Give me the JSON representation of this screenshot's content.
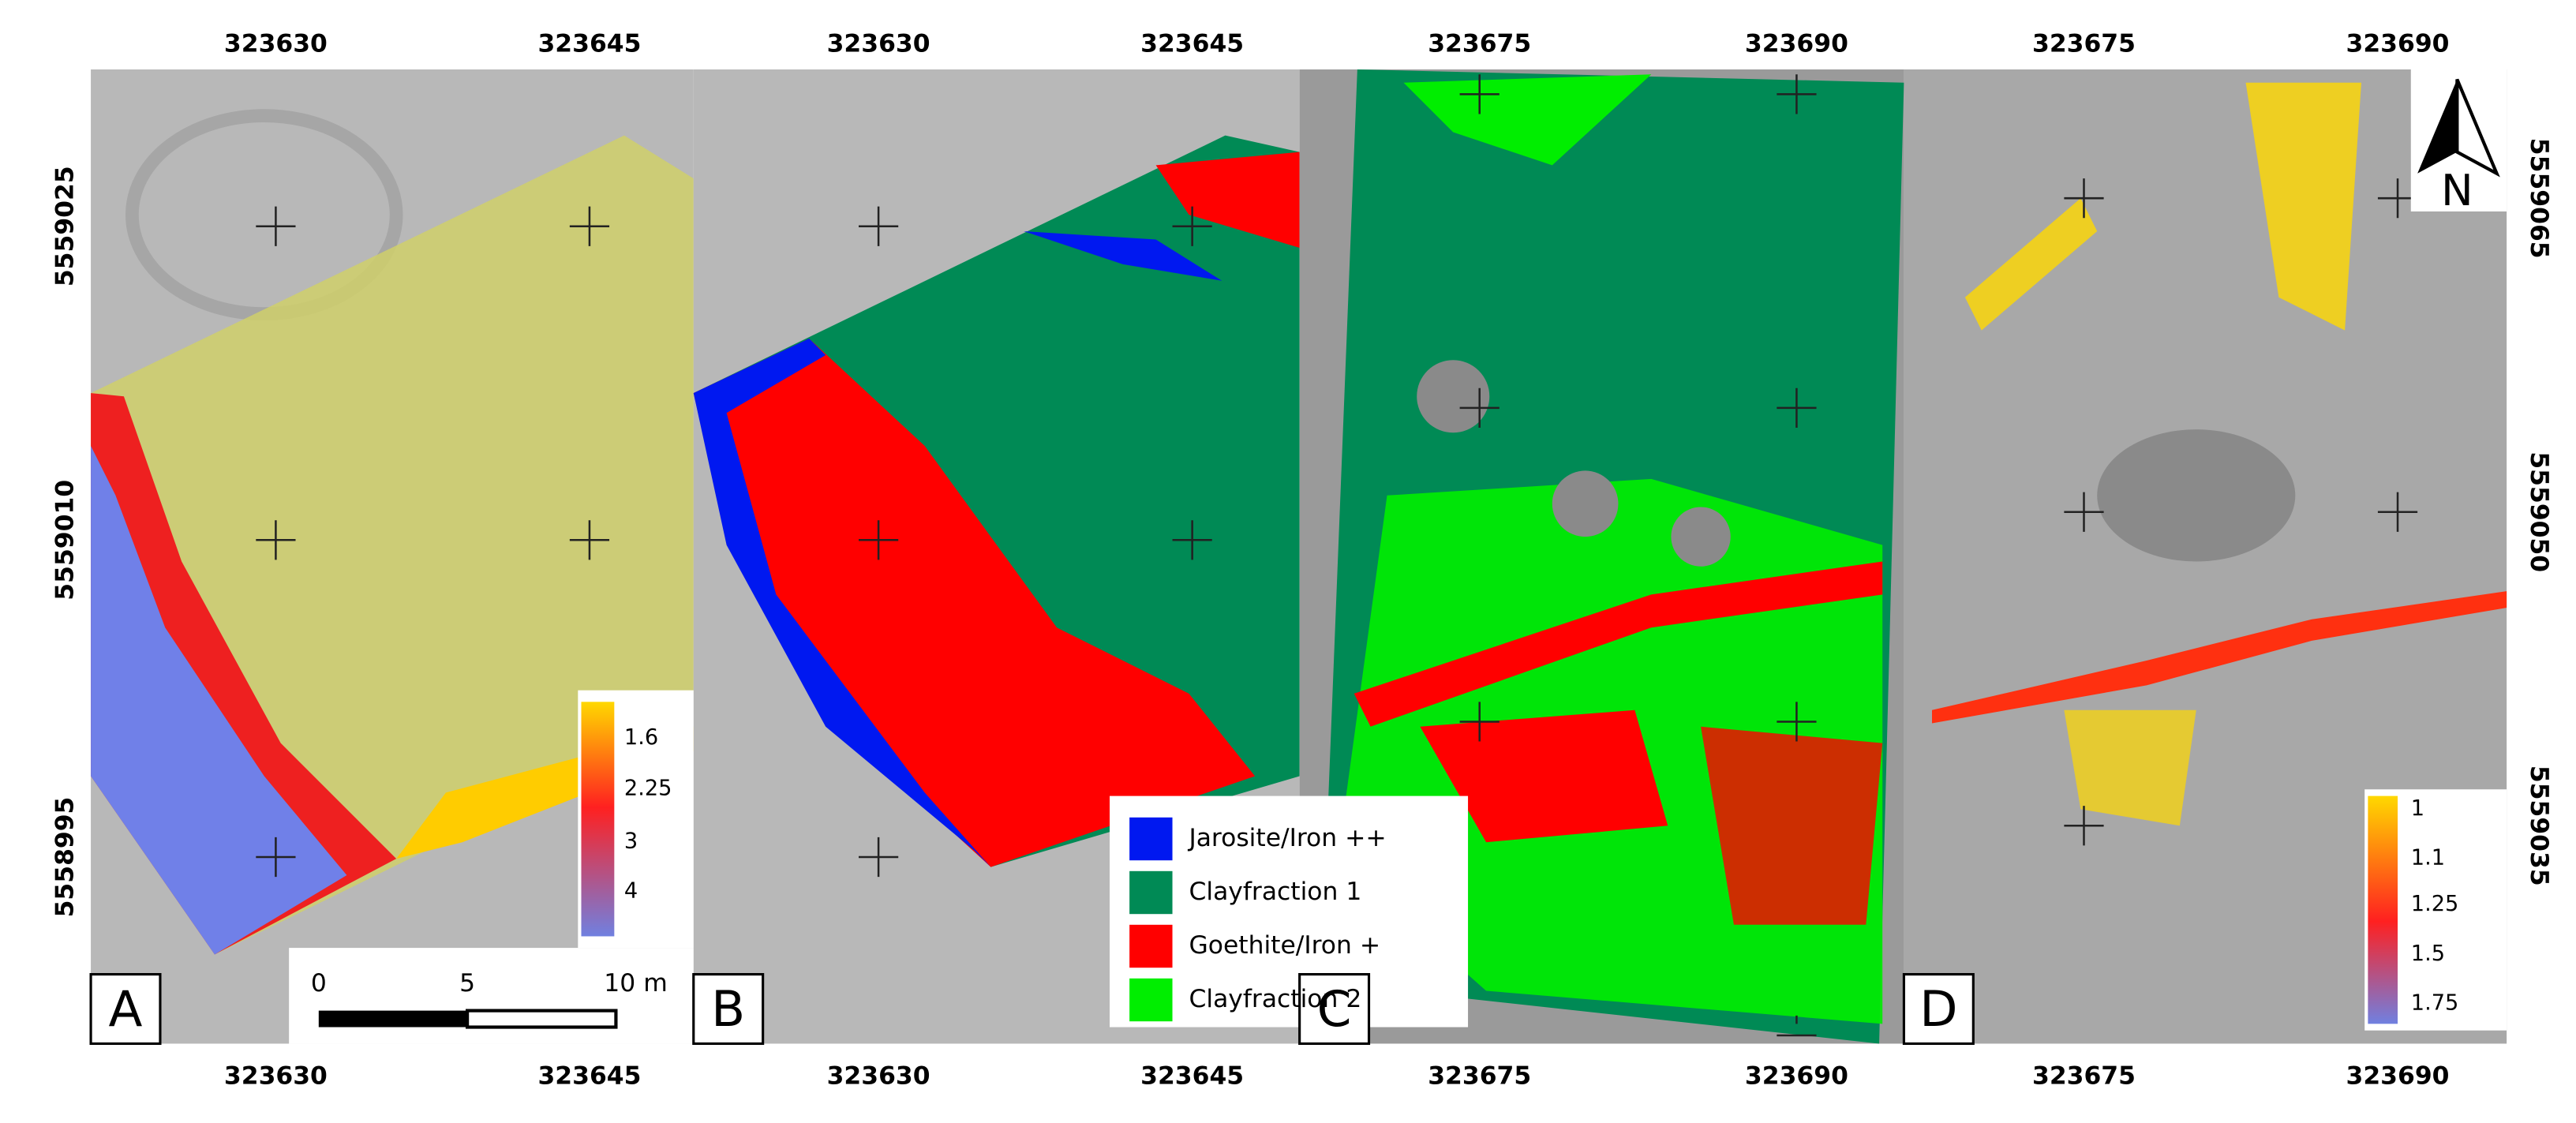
{
  "panels": [
    {
      "letter": "A",
      "top_labels": [
        "323630",
        "323645"
      ],
      "bottom_labels": [
        "323630",
        "323645"
      ]
    },
    {
      "letter": "B",
      "top_labels": [
        "323630",
        "323645"
      ],
      "bottom_labels": [
        "323630",
        "323645"
      ]
    },
    {
      "letter": "C",
      "top_labels": [
        "323675",
        "323690"
      ],
      "bottom_labels": [
        "323675",
        "323690"
      ]
    },
    {
      "letter": "D",
      "top_labels": [
        "323675",
        "323690"
      ],
      "bottom_labels": [
        "323675",
        "323690"
      ]
    }
  ],
  "left_labels": [
    "5559025",
    "5559010",
    "5558995"
  ],
  "right_labels": [
    "5559065",
    "5559050",
    "5559035"
  ],
  "colorbar_a": {
    "labels": [
      "1.6",
      "2.25",
      "3",
      "4"
    ]
  },
  "colorbar_d": {
    "labels": [
      "1",
      "1.1",
      "1.25",
      "1.5",
      "1.75"
    ]
  },
  "class_legend": [
    {
      "name": "Jarosite/Iron ++",
      "color": "#0018f0"
    },
    {
      "name": "Clayfraction 1",
      "color": "#008a55"
    },
    {
      "name": "Goethite/Iron +",
      "color": "#ff0000"
    },
    {
      "name": "Clayfraction 2",
      "color": "#00ee00"
    }
  ],
  "scale_bar": {
    "labels": [
      "0",
      "5",
      "10 m"
    ]
  },
  "north": "N"
}
